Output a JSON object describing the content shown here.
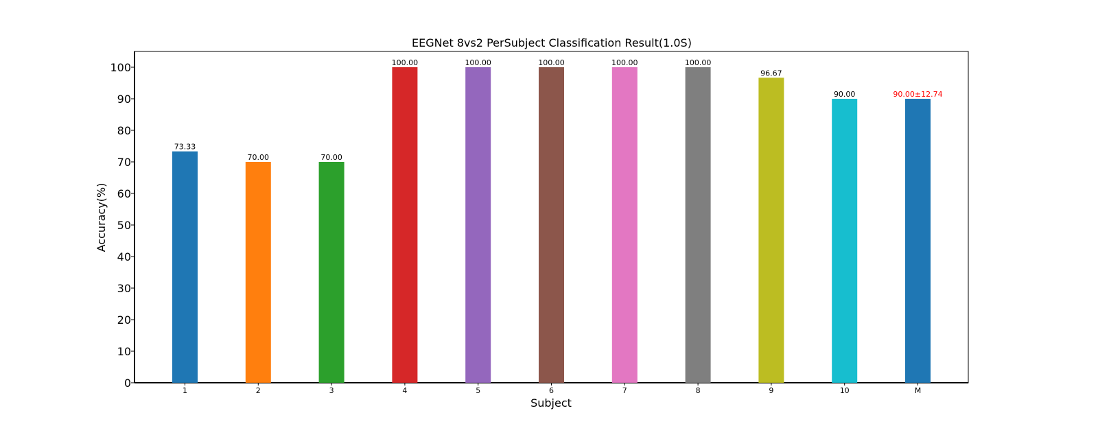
{
  "chart_data": {
    "type": "bar",
    "title": "EEGNet 8vs2 PerSubject Classification Result(1.0S)",
    "xlabel": "Subject",
    "ylabel": "Accuracy(%)",
    "ylim": [
      0,
      105
    ],
    "yticks": [
      0,
      10,
      20,
      30,
      40,
      50,
      60,
      70,
      80,
      90,
      100
    ],
    "categories": [
      "1",
      "2",
      "3",
      "4",
      "5",
      "6",
      "7",
      "8",
      "9",
      "10",
      "M"
    ],
    "values": [
      73.33,
      70.0,
      70.0,
      100.0,
      100.0,
      100.0,
      100.0,
      100.0,
      96.67,
      90.0,
      90.0
    ],
    "data_labels": [
      "73.33",
      "70.00",
      "70.00",
      "100.00",
      "100.00",
      "100.00",
      "100.00",
      "100.00",
      "96.67",
      "90.00",
      "90.00±12.74"
    ],
    "colors": [
      "#1f77b4",
      "#ff7f0e",
      "#2ca02c",
      "#d62728",
      "#9467bd",
      "#8c564b",
      "#e377c2",
      "#7f7f7f",
      "#bcbd22",
      "#17becf",
      "#1f77b4"
    ],
    "label_colors": [
      "#000000",
      "#000000",
      "#000000",
      "#000000",
      "#000000",
      "#000000",
      "#000000",
      "#000000",
      "#000000",
      "#000000",
      "#ff0000"
    ],
    "grid": false,
    "legend": "none"
  }
}
